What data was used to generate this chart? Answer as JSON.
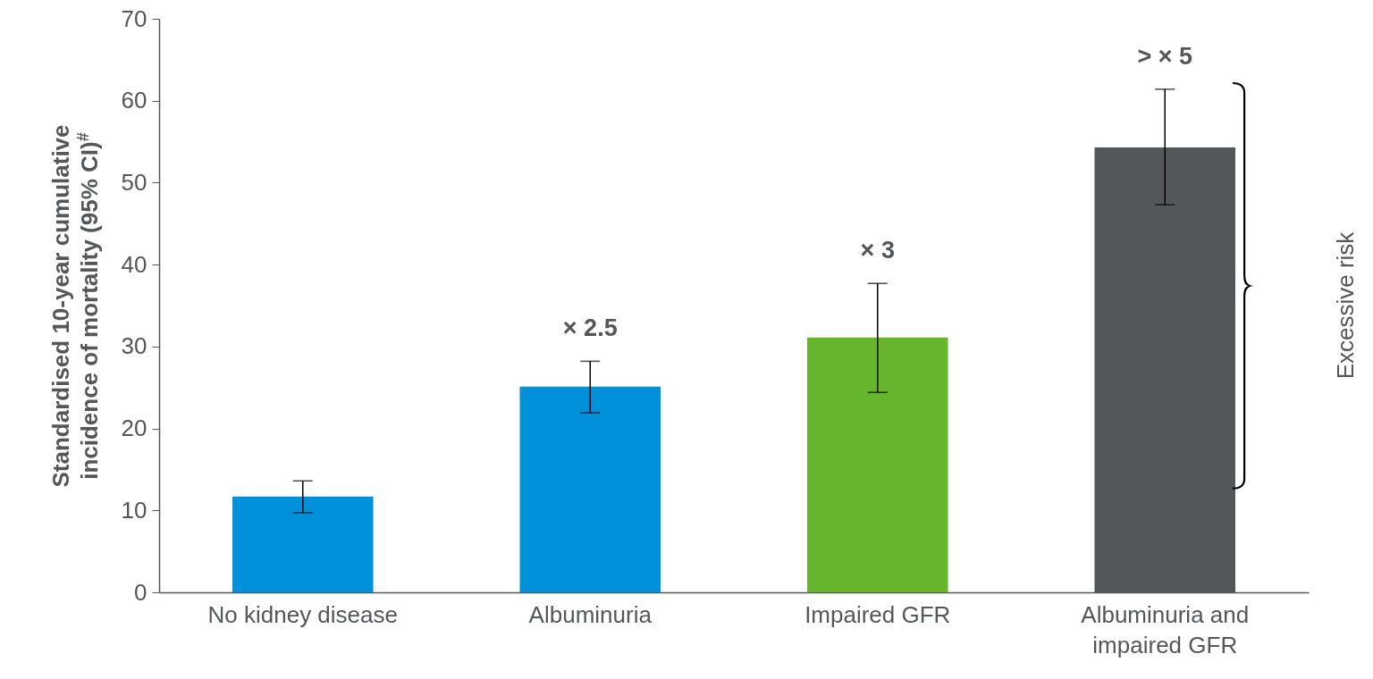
{
  "chart_data": {
    "type": "bar",
    "ylabel": "Standardised 10-year cumulative\nincidence of mortality (95% CI)$^{#}$",
    "categories": [
      "No kidney disease",
      "Albuminuria",
      "Impaired GFR",
      "Albuminuria and impaired GFR"
    ],
    "values": [
      11.7,
      25.1,
      31.1,
      54.3
    ],
    "colors": [
      "#0091da",
      "#0091da",
      "#66b52c",
      "#53575a"
    ],
    "errors": [
      [
        9.7,
        13.6
      ],
      [
        21.9,
        28.2
      ],
      [
        24.4,
        37.7
      ],
      [
        47.3,
        61.4
      ]
    ],
    "ylim": [
      0,
      70
    ],
    "yticks": [
      0,
      10,
      20,
      30,
      40,
      50,
      60,
      70
    ],
    "grid": false,
    "annotations": [
      "× 2.5",
      "× 3",
      "> × 5",
      "Excessive risk"
    ]
  }
}
